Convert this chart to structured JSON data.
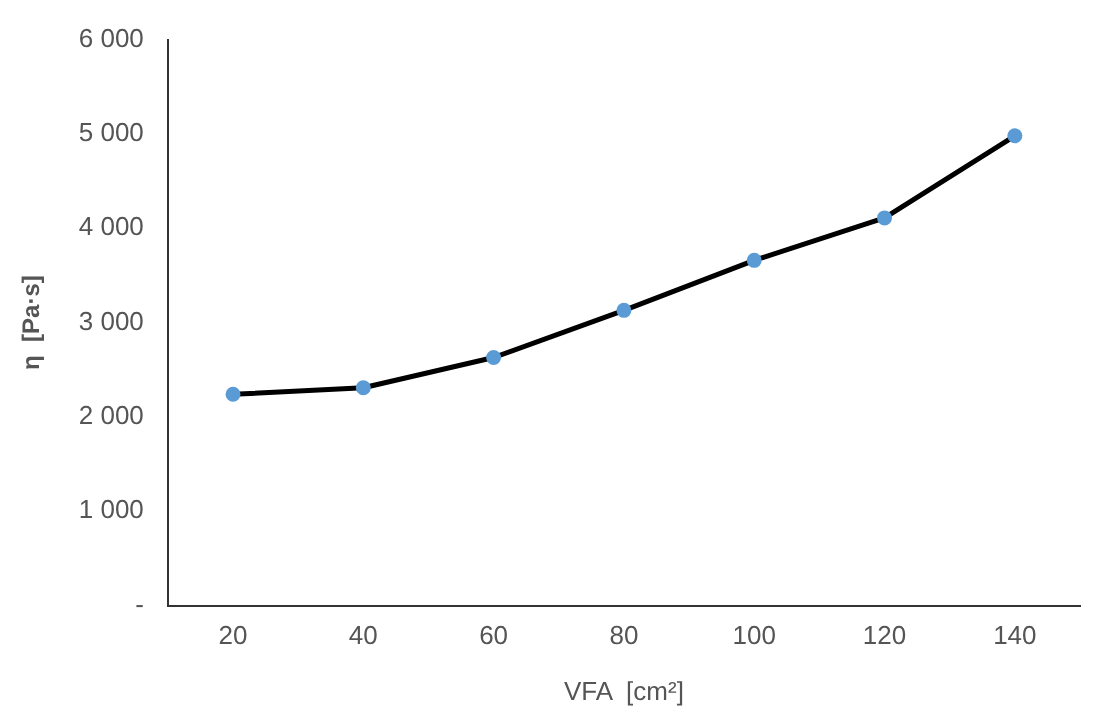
{
  "chart_data": {
    "type": "line",
    "xlabel": "VFA  [cm²]",
    "ylabel": "η  [Pa·s]",
    "categories": [
      "20",
      "40",
      "60",
      "80",
      "100",
      "120",
      "140"
    ],
    "series": [
      {
        "color": "#000000",
        "values": [
          2240,
          2310,
          2630,
          3130,
          3660,
          4110,
          4980
        ]
      }
    ],
    "marker": "circle",
    "line_style": "solid",
    "ylim": [
      0,
      6000
    ],
    "yticks": [
      {
        "value": 0,
        "label": "-"
      },
      {
        "value": 1000,
        "label": "1 000"
      },
      {
        "value": 2000,
        "label": "2 000"
      },
      {
        "value": 3000,
        "label": "3 000"
      },
      {
        "value": 4000,
        "label": "4 000"
      },
      {
        "value": 5000,
        "label": "5 000"
      },
      {
        "value": 6000,
        "label": "6 000"
      }
    ],
    "grid": false,
    "legend": false
  }
}
